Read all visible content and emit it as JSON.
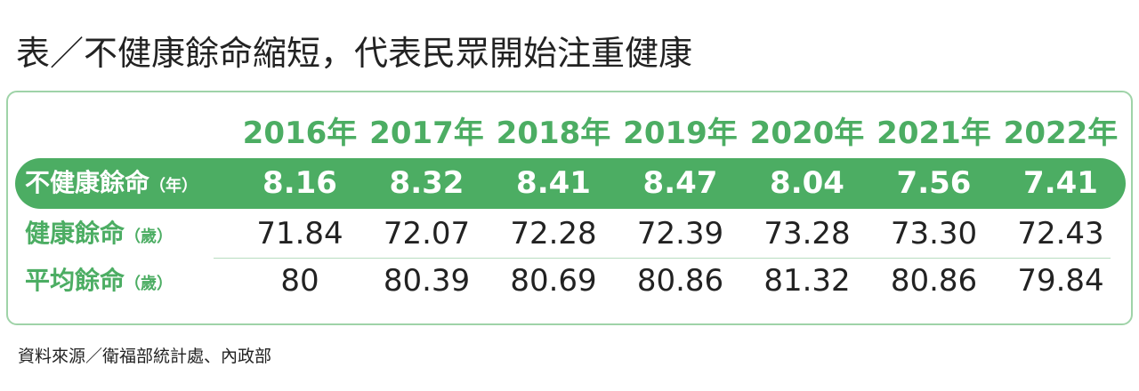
{
  "header": {
    "title": "表／不健康餘命縮短，代表民眾開始注重健康"
  },
  "table": {
    "columns": [
      "2016年",
      "2017年",
      "2018年",
      "2019年",
      "2020年",
      "2021年",
      "2022年"
    ],
    "rows": [
      {
        "label": "不健康餘命",
        "unit": "（年）",
        "values": [
          "8.16",
          "8.32",
          "8.41",
          "8.47",
          "8.04",
          "7.56",
          "7.41"
        ]
      },
      {
        "label": "健康餘命",
        "unit": "（歲）",
        "values": [
          "71.84",
          "72.07",
          "72.28",
          "72.39",
          "73.28",
          "73.30",
          "72.43"
        ]
      },
      {
        "label": "平均餘命",
        "unit": "（歲）",
        "values": [
          "80",
          "80.39",
          "80.69",
          "80.86",
          "81.32",
          "80.86",
          "79.84"
        ]
      }
    ]
  },
  "footer": {
    "source": "資料來源／衛福部統計處、內政部"
  }
}
